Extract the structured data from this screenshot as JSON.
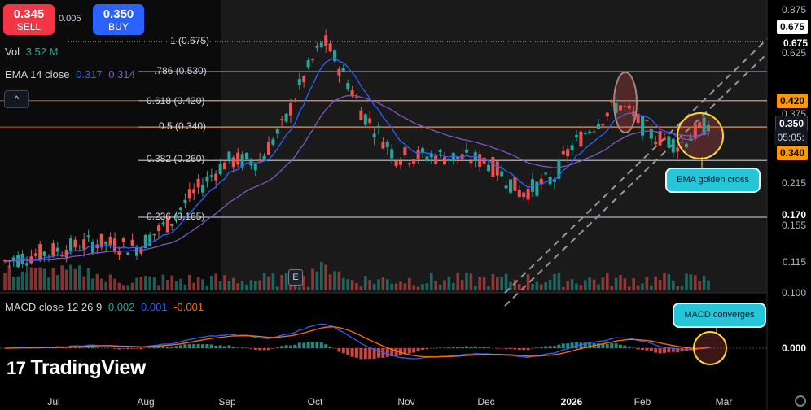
{
  "trade": {
    "sell_price": "0.345",
    "sell_label": "SELL",
    "buy_price": "0.350",
    "buy_label": "BUY",
    "spread": "0.005"
  },
  "legend": {
    "vol_label": "Vol",
    "vol_value": "3.52 M",
    "ema_label": "EMA 14 close",
    "ema_value1": "0.317",
    "ema_value2": "0.314",
    "macd_label": "MACD close 12 26 9",
    "macd_value1": "0.002",
    "macd_value2": "0.001",
    "macd_value3": "-0.001"
  },
  "buttons": {
    "collapse": "^",
    "e": "E"
  },
  "callouts": {
    "ema_golden_cross": "EMA golden cross",
    "macd_converges": "MACD converges"
  },
  "logo": {
    "mark": "17",
    "text": "TradingView"
  },
  "x_axis": [
    "Jul",
    "Aug",
    "Sep",
    "Oct",
    "Nov",
    "Dec",
    "2026",
    "Feb",
    "Mar"
  ],
  "y_axis": {
    "ticks": [
      "0.875",
      "0.675",
      "0.625",
      "0.375",
      "0.215",
      "0.170",
      "0.155",
      "0.115",
      "0.100"
    ],
    "macd_tick": "0.000"
  },
  "fib_levels": [
    {
      "label": "1 (0.675)",
      "value": 0.675
    },
    {
      "label": ".786 (0.530)",
      "value": 0.53
    },
    {
      "label": "0.618 (0.420)",
      "value": 0.42
    },
    {
      "label": "0.5 (0.340)",
      "value": 0.34
    },
    {
      "label": "0.382 (0.260)",
      "value": 0.26
    },
    {
      "label": "0.236 (0.165)",
      "value": 0.165
    }
  ],
  "badges": {
    "top": "0.675",
    "fib618": "0.420",
    "last_price": "0.350",
    "countdown": "05:05:",
    "fib5": "0.340"
  },
  "colors": {
    "up": "#26a69a",
    "down": "#ef5350",
    "ema_fast": "#2962ff",
    "ema_slow": "#7e57c2",
    "macd": "#2962ff",
    "signal": "#ff6d00",
    "accent": "#26c6da"
  },
  "chart_data": {
    "type": "candlestick",
    "price_scale": "log",
    "months": [
      "Jul",
      "Aug",
      "Sep",
      "Oct",
      "Nov",
      "Dec",
      "2026",
      "Feb",
      "Mar"
    ],
    "close_path": [
      [
        "Jul",
        0.115
      ],
      [
        "mid-Jul",
        0.135
      ],
      [
        "Aug",
        0.13
      ],
      [
        "mid-Aug",
        0.16
      ],
      [
        "late-Aug",
        0.21
      ],
      [
        "Sep",
        0.26
      ],
      [
        "mid-Sep",
        0.26
      ],
      [
        "late-Sep",
        0.35
      ],
      [
        "Oct",
        0.55
      ],
      [
        "early-Oct",
        0.68
      ],
      [
        "mid-Oct",
        0.53
      ],
      [
        "late-Oct",
        0.38
      ],
      [
        "Nov",
        0.27
      ],
      [
        "mid-Nov",
        0.27
      ],
      [
        "Dec",
        0.26
      ],
      [
        "mid-Dec",
        0.2
      ],
      [
        "late-Dec",
        0.225
      ],
      [
        "2026",
        0.29
      ],
      [
        "mid-Jan",
        0.41
      ],
      [
        "Feb",
        0.32
      ],
      [
        "mid-Feb",
        0.295
      ],
      [
        "late-Feb",
        0.35
      ]
    ],
    "indicators": [
      "Vol",
      "EMA 14 close",
      "MACD close 12 26 9"
    ],
    "annotations": [
      "EMA golden cross",
      "MACD converges"
    ]
  }
}
